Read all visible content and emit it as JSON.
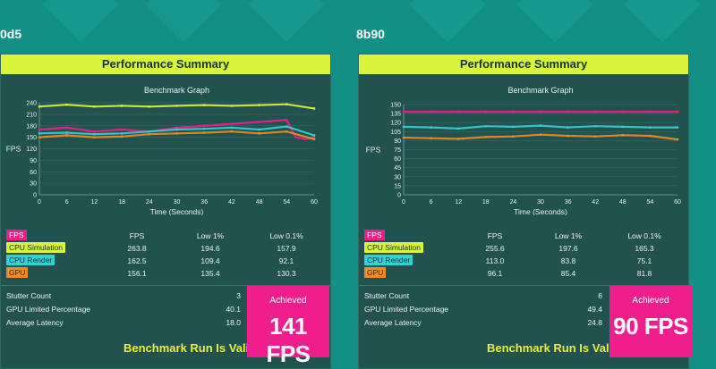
{
  "colors": {
    "background": "#138f86",
    "panel": "#22524d",
    "title_bar": "#d8f53b",
    "fps": "#f01e8c",
    "cpu_simulation": "#d8f53b",
    "cpu_render": "#35d0d6",
    "gpu": "#f08c28",
    "achieved_box": "#f01e8c",
    "valid_text": "#e8f03c"
  },
  "left": {
    "tag": "0d5",
    "title": "Performance Summary",
    "graph_title": "Benchmark Graph",
    "ylabel": "FPS",
    "xlabel": "Time (Seconds)",
    "legend": [
      "FPS",
      "CPU Simulation",
      "CPU Render",
      "GPU"
    ],
    "columns": [
      "FPS",
      "Low 1%",
      "Low 0.1%"
    ],
    "rows": [
      {
        "name": "CPU Simulation",
        "fps": "263.8",
        "low1": "194.6",
        "low01": "157.9"
      },
      {
        "name": "CPU Render",
        "fps": "162.5",
        "low1": "109.4",
        "low01": "92.1"
      },
      {
        "name": "GPU",
        "fps": "156.1",
        "low1": "135.4",
        "low01": "130.3"
      }
    ],
    "stats": [
      {
        "label": "Stutter Count",
        "value": "3"
      },
      {
        "label": "GPU Limited Percentage",
        "value": "40.1"
      },
      {
        "label": "Average Latency",
        "value": "18.0"
      }
    ],
    "achieved_label": "Achieved",
    "achieved_value": "141 FPS",
    "valid": "Benchmark Run Is Valid",
    "chart_data": {
      "type": "line",
      "title": "Benchmark Graph",
      "xlabel": "Time (Seconds)",
      "ylabel": "FPS",
      "xlim": [
        0,
        60
      ],
      "ylim": [
        0,
        240
      ],
      "xticks": [
        "0",
        "6",
        "12",
        "18",
        "24",
        "30",
        "36",
        "42",
        "48",
        "54",
        "60"
      ],
      "yticks": [
        "0",
        "30",
        "60",
        "90",
        "120",
        "150",
        "180",
        "210",
        "240"
      ],
      "series": [
        {
          "name": "FPS",
          "color": "#f01e8c",
          "x": [
            0,
            6,
            12,
            18,
            24,
            30,
            36,
            42,
            48,
            54,
            56,
            58,
            60
          ],
          "y": [
            170,
            175,
            165,
            170,
            165,
            175,
            180,
            185,
            190,
            195,
            150,
            145,
            150
          ]
        },
        {
          "name": "CPU Simulation",
          "color": "#d8f53b",
          "x": [
            0,
            6,
            12,
            18,
            24,
            30,
            36,
            42,
            48,
            54,
            60
          ],
          "y": [
            230,
            235,
            230,
            232,
            230,
            232,
            234,
            232,
            234,
            236,
            225
          ]
        },
        {
          "name": "CPU Render",
          "color": "#35d0d6",
          "x": [
            0,
            6,
            12,
            18,
            24,
            30,
            36,
            42,
            48,
            54,
            60
          ],
          "y": [
            160,
            162,
            158,
            160,
            165,
            170,
            172,
            175,
            170,
            178,
            155
          ]
        },
        {
          "name": "GPU",
          "color": "#f08c28",
          "x": [
            0,
            6,
            12,
            18,
            24,
            30,
            36,
            42,
            48,
            54,
            60
          ],
          "y": [
            150,
            155,
            150,
            152,
            158,
            160,
            162,
            165,
            160,
            165,
            145
          ]
        }
      ]
    }
  },
  "right": {
    "tag": "8b90",
    "title": "Performance Summary",
    "graph_title": "Benchmark Graph",
    "ylabel": "FPS",
    "xlabel": "Time (Seconds)",
    "legend": [
      "FPS",
      "CPU Simulation",
      "CPU Render",
      "GPU"
    ],
    "columns": [
      "FPS",
      "Low 1%",
      "Low 0.1%"
    ],
    "rows": [
      {
        "name": "CPU Simulation",
        "fps": "255.6",
        "low1": "197.6",
        "low01": "165.3"
      },
      {
        "name": "CPU Render",
        "fps": "113.0",
        "low1": "83.8",
        "low01": "75.1"
      },
      {
        "name": "GPU",
        "fps": "96.1",
        "low1": "85.4",
        "low01": "81.8"
      }
    ],
    "stats": [
      {
        "label": "Stutter Count",
        "value": "6"
      },
      {
        "label": "GPU Limited Percentage",
        "value": "49.4"
      },
      {
        "label": "Average Latency",
        "value": "24.8"
      }
    ],
    "achieved_label": "Achieved",
    "achieved_value": "90 FPS",
    "valid": "Benchmark Run Is Valid",
    "chart_data": {
      "type": "line",
      "title": "Benchmark Graph",
      "xlabel": "Time (Seconds)",
      "ylabel": "FPS",
      "xlim": [
        0,
        60
      ],
      "ylim": [
        0,
        150
      ],
      "xticks": [
        "0",
        "6",
        "12",
        "18",
        "24",
        "30",
        "36",
        "42",
        "48",
        "54",
        "60"
      ],
      "yticks": [
        "0",
        "15",
        "30",
        "45",
        "60",
        "75",
        "90",
        "105",
        "120",
        "135",
        "150"
      ],
      "series": [
        {
          "name": "FPS",
          "color": "#f01e8c",
          "x": [
            0,
            6,
            12,
            18,
            24,
            30,
            36,
            42,
            48,
            54,
            60
          ],
          "y": [
            138,
            138,
            138,
            138,
            138,
            138,
            138,
            138,
            138,
            138,
            138
          ]
        },
        {
          "name": "CPU Render",
          "color": "#35d0d6",
          "x": [
            0,
            6,
            12,
            18,
            24,
            30,
            36,
            42,
            48,
            54,
            60
          ],
          "y": [
            113,
            112,
            110,
            114,
            113,
            115,
            112,
            114,
            113,
            112,
            112
          ]
        },
        {
          "name": "GPU",
          "color": "#f08c28",
          "x": [
            0,
            6,
            12,
            18,
            24,
            30,
            36,
            42,
            48,
            54,
            60
          ],
          "y": [
            95,
            94,
            93,
            96,
            97,
            100,
            98,
            97,
            99,
            98,
            92
          ]
        }
      ]
    }
  }
}
